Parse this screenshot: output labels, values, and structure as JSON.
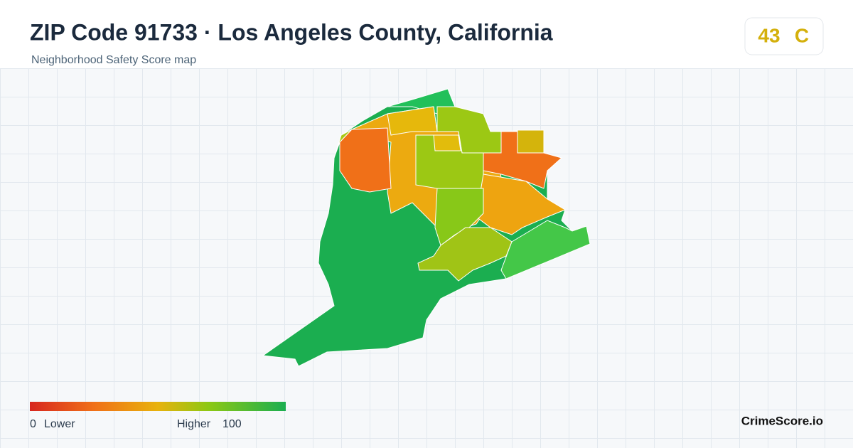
{
  "header": {
    "title": "ZIP Code 91733 · Los Angeles County, California",
    "subtitle": "Neighborhood Safety Score map"
  },
  "score": {
    "value": 43,
    "grade": "C"
  },
  "legend": {
    "min": 0,
    "min_label": "Lower",
    "max_label": "Higher",
    "max": 100
  },
  "brand": "CrimeScore.io"
}
